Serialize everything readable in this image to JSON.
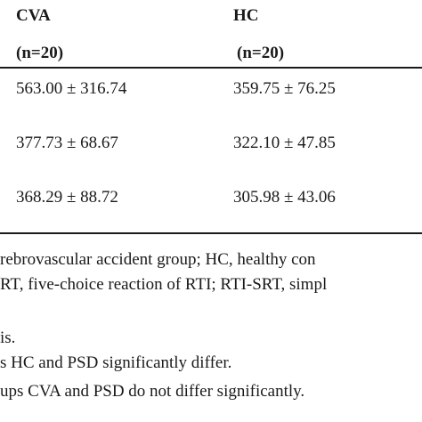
{
  "table": {
    "header": [
      [
        "CVA",
        "HC"
      ],
      [
        "(n=20)",
        "(n=20)"
      ]
    ],
    "rows": [
      [
        "563.00 ± 316.74",
        "359.75 ± 76.25"
      ],
      [
        "377.73 ± 68.67",
        "322.10 ± 47.85"
      ],
      [
        "368.29 ± 88.72",
        "305.98 ± 43.06"
      ]
    ]
  },
  "footnotes": [
    "rebrovascular accident group; HC, healthy con",
    "RT, five-choice reaction of RTI; RTI-SRT, simpl",
    "is.",
    "s HC and PSD significantly differ.",
    "ups CVA and PSD do not differ significantly."
  ]
}
